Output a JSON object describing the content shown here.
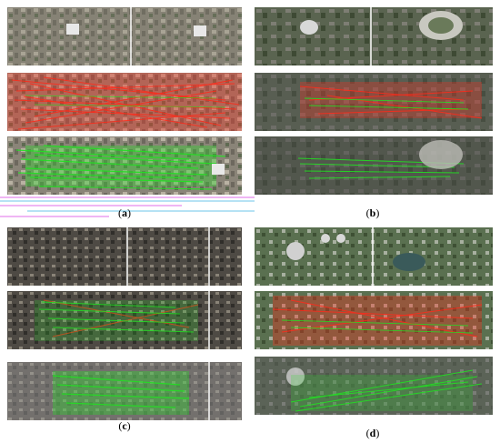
{
  "figure": {
    "panels": [
      {
        "id": "a",
        "label": "a",
        "caption_open": "(",
        "caption_close": ")"
      },
      {
        "id": "b",
        "label": "b",
        "caption_open": "(",
        "caption_close": ")"
      },
      {
        "id": "c",
        "label": "c",
        "caption_open": "(",
        "caption_close": ")"
      },
      {
        "id": "d",
        "label": "d",
        "caption_open": "(",
        "caption_close": ")"
      }
    ],
    "colors": {
      "red_lines": "#ff2a1a",
      "green_lines": "#22e022",
      "urban_gray": "#6e6e6e",
      "dark_urban": "#3c3c3c",
      "vegetation": "#4a6a3a"
    },
    "rows": [
      "image-pair",
      "initial-matches",
      "correct-matches"
    ]
  }
}
